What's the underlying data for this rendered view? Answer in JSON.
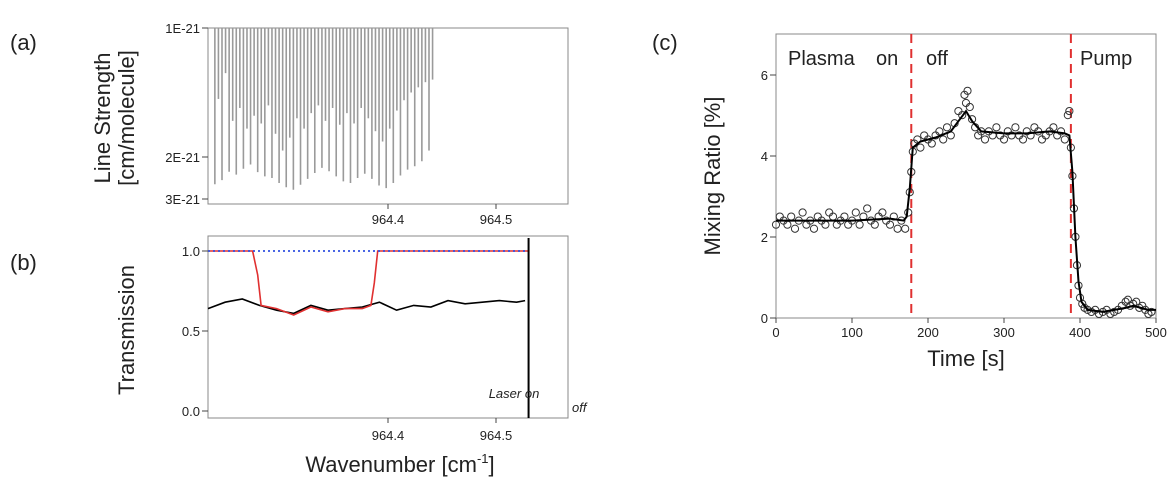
{
  "chart_data": [
    {
      "id": "a",
      "type": "bar",
      "panel_label": "(a)",
      "ylabel_lines": [
        "Line Strength",
        "[cm/molecule]"
      ],
      "y_ticks": [
        "1E-21",
        "2E-21",
        "3E-21"
      ],
      "x_ticks": [
        "964.4",
        "964.5"
      ],
      "xlim": [
        964.35,
        964.56
      ],
      "ylim_top": "1E-21",
      "ylim_bottom": "3.1E-21",
      "inverted_y": true,
      "color": "#9a9a9a",
      "lines": {
        "x_start": 964.354,
        "x_end": 964.481,
        "count": 62,
        "depths": [
          2.65,
          1.55,
          2.55,
          1.35,
          2.35,
          1.72,
          2.42,
          1.62,
          2.28,
          1.78,
          2.18,
          1.68,
          2.36,
          1.74,
          2.46,
          1.6,
          2.5,
          1.82,
          2.62,
          1.95,
          2.72,
          1.85,
          2.78,
          1.7,
          2.66,
          1.78,
          2.52,
          1.66,
          2.38,
          1.6,
          2.26,
          1.72,
          2.34,
          1.62,
          2.46,
          1.75,
          2.58,
          1.66,
          2.62,
          1.74,
          2.5,
          1.62,
          2.4,
          1.7,
          2.52,
          1.8,
          2.68,
          1.88,
          2.74,
          1.78,
          2.62,
          1.64,
          2.44,
          1.56,
          2.3,
          1.5,
          2.22,
          1.46,
          2.1,
          1.42,
          1.95,
          1.4
        ]
      }
    },
    {
      "id": "b",
      "type": "line",
      "panel_label": "(b)",
      "ylabel": "Transmission",
      "xlabel_base": "Wavenumber [cm",
      "xlabel_sup": "-1",
      "xlabel_end": "]",
      "y_ticks": [
        "0.0",
        "0.5",
        "1.0"
      ],
      "x_ticks": [
        "964.4",
        "964.5"
      ],
      "xlim": [
        964.35,
        964.56
      ],
      "ylim": [
        -0.02,
        1.08
      ],
      "annotation_laser_on": "Laser on",
      "annotation_off": "off",
      "laser_off_x": 964.537,
      "series": [
        {
          "color": "#000000",
          "style": "solid",
          "x": [
            964.35,
            964.36,
            964.37,
            964.38,
            964.39,
            964.4,
            964.41,
            964.42,
            964.43,
            964.44,
            964.45,
            964.46,
            964.47,
            964.48,
            964.49,
            964.5,
            964.51,
            964.52,
            964.53,
            964.535
          ],
          "y": [
            0.64,
            0.68,
            0.7,
            0.66,
            0.63,
            0.61,
            0.66,
            0.63,
            0.64,
            0.65,
            0.68,
            0.63,
            0.66,
            0.65,
            0.69,
            0.67,
            0.68,
            0.69,
            0.68,
            0.69
          ]
        },
        {
          "color": "#e03030",
          "style": "solid",
          "x": [
            964.35,
            964.376,
            964.379,
            964.381,
            964.39,
            964.4,
            964.41,
            964.42,
            964.43,
            964.44,
            964.445,
            964.447,
            964.449,
            964.47,
            964.5,
            964.537
          ],
          "y": [
            1.0,
            1.0,
            0.85,
            0.66,
            0.64,
            0.6,
            0.65,
            0.62,
            0.64,
            0.64,
            0.66,
            0.8,
            1.0,
            1.0,
            1.0,
            1.0
          ]
        },
        {
          "color": "#3050e0",
          "style": "dotted",
          "x": [
            964.35,
            964.537
          ],
          "y": [
            1.0,
            1.0
          ]
        }
      ]
    },
    {
      "id": "c",
      "type": "scatter",
      "panel_label": "(c)",
      "ylabel": "Mixing Ratio [%]",
      "xlabel": "Time [s]",
      "y_ticks": [
        "0",
        "2",
        "4",
        "6"
      ],
      "x_ticks": [
        "0",
        "100",
        "200",
        "300",
        "400",
        "500"
      ],
      "xlim": [
        0,
        500
      ],
      "ylim": [
        0,
        7
      ],
      "annotation_plasma": "Plasma",
      "annotation_on": "on",
      "annotation_off": "off",
      "annotation_pump": "Pump",
      "event_lines_x": [
        178,
        388
      ],
      "event_line_color": "#e03030",
      "points": [
        [
          0,
          2.3
        ],
        [
          5,
          2.5
        ],
        [
          10,
          2.4
        ],
        [
          15,
          2.3
        ],
        [
          20,
          2.5
        ],
        [
          25,
          2.2
        ],
        [
          30,
          2.4
        ],
        [
          35,
          2.6
        ],
        [
          40,
          2.3
        ],
        [
          45,
          2.4
        ],
        [
          50,
          2.2
        ],
        [
          55,
          2.5
        ],
        [
          60,
          2.4
        ],
        [
          65,
          2.3
        ],
        [
          70,
          2.6
        ],
        [
          75,
          2.5
        ],
        [
          80,
          2.3
        ],
        [
          85,
          2.4
        ],
        [
          90,
          2.5
        ],
        [
          95,
          2.3
        ],
        [
          100,
          2.4
        ],
        [
          105,
          2.6
        ],
        [
          110,
          2.3
        ],
        [
          115,
          2.5
        ],
        [
          120,
          2.7
        ],
        [
          125,
          2.4
        ],
        [
          130,
          2.3
        ],
        [
          135,
          2.5
        ],
        [
          140,
          2.6
        ],
        [
          145,
          2.4
        ],
        [
          150,
          2.3
        ],
        [
          155,
          2.5
        ],
        [
          160,
          2.2
        ],
        [
          165,
          2.4
        ],
        [
          170,
          2.2
        ],
        [
          174,
          2.6
        ],
        [
          176,
          3.1
        ],
        [
          178,
          3.6
        ],
        [
          180,
          4.1
        ],
        [
          182,
          4.3
        ],
        [
          186,
          4.4
        ],
        [
          190,
          4.2
        ],
        [
          195,
          4.5
        ],
        [
          200,
          4.4
        ],
        [
          205,
          4.3
        ],
        [
          210,
          4.5
        ],
        [
          215,
          4.6
        ],
        [
          220,
          4.4
        ],
        [
          225,
          4.7
        ],
        [
          230,
          4.5
        ],
        [
          235,
          4.8
        ],
        [
          240,
          5.1
        ],
        [
          245,
          5.0
        ],
        [
          248,
          5.5
        ],
        [
          250,
          5.3
        ],
        [
          252,
          5.6
        ],
        [
          255,
          5.2
        ],
        [
          258,
          4.9
        ],
        [
          262,
          4.7
        ],
        [
          266,
          4.5
        ],
        [
          270,
          4.6
        ],
        [
          275,
          4.4
        ],
        [
          280,
          4.6
        ],
        [
          285,
          4.5
        ],
        [
          290,
          4.7
        ],
        [
          295,
          4.5
        ],
        [
          300,
          4.4
        ],
        [
          305,
          4.6
        ],
        [
          310,
          4.5
        ],
        [
          315,
          4.7
        ],
        [
          320,
          4.5
        ],
        [
          325,
          4.4
        ],
        [
          330,
          4.6
        ],
        [
          335,
          4.5
        ],
        [
          340,
          4.7
        ],
        [
          345,
          4.6
        ],
        [
          350,
          4.4
        ],
        [
          355,
          4.5
        ],
        [
          360,
          4.6
        ],
        [
          365,
          4.7
        ],
        [
          370,
          4.5
        ],
        [
          375,
          4.6
        ],
        [
          380,
          4.4
        ],
        [
          384,
          5.0
        ],
        [
          386,
          5.1
        ],
        [
          388,
          4.2
        ],
        [
          390,
          3.5
        ],
        [
          392,
          2.7
        ],
        [
          394,
          2.0
        ],
        [
          396,
          1.3
        ],
        [
          398,
          0.8
        ],
        [
          400,
          0.5
        ],
        [
          403,
          0.35
        ],
        [
          406,
          0.25
        ],
        [
          410,
          0.2
        ],
        [
          415,
          0.15
        ],
        [
          420,
          0.2
        ],
        [
          425,
          0.1
        ],
        [
          430,
          0.15
        ],
        [
          435,
          0.2
        ],
        [
          440,
          0.1
        ],
        [
          445,
          0.15
        ],
        [
          450,
          0.2
        ],
        [
          455,
          0.3
        ],
        [
          460,
          0.4
        ],
        [
          463,
          0.45
        ],
        [
          466,
          0.3
        ],
        [
          470,
          0.35
        ],
        [
          474,
          0.4
        ],
        [
          478,
          0.25
        ],
        [
          482,
          0.3
        ],
        [
          486,
          0.2
        ],
        [
          490,
          0.1
        ],
        [
          494,
          0.15
        ]
      ],
      "fit_line": [
        [
          0,
          2.4
        ],
        [
          50,
          2.4
        ],
        [
          100,
          2.4
        ],
        [
          150,
          2.45
        ],
        [
          168,
          2.4
        ],
        [
          172,
          2.5
        ],
        [
          176,
          3.2
        ],
        [
          180,
          4.2
        ],
        [
          190,
          4.35
        ],
        [
          210,
          4.45
        ],
        [
          230,
          4.6
        ],
        [
          240,
          4.85
        ],
        [
          250,
          5.1
        ],
        [
          258,
          4.85
        ],
        [
          270,
          4.6
        ],
        [
          300,
          4.55
        ],
        [
          330,
          4.55
        ],
        [
          360,
          4.6
        ],
        [
          380,
          4.55
        ],
        [
          386,
          4.5
        ],
        [
          390,
          3.6
        ],
        [
          394,
          2.0
        ],
        [
          398,
          0.9
        ],
        [
          402,
          0.4
        ],
        [
          410,
          0.2
        ],
        [
          430,
          0.15
        ],
        [
          460,
          0.25
        ],
        [
          470,
          0.3
        ],
        [
          490,
          0.2
        ],
        [
          500,
          0.2
        ]
      ]
    }
  ]
}
